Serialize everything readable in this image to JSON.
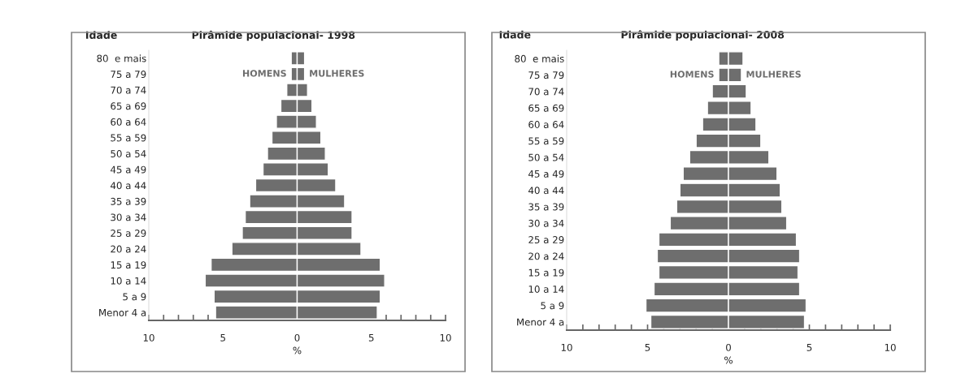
{
  "chart_data": [
    {
      "type": "bar",
      "orientation": "horizontal",
      "title": "Pirâmide populacional- 1998",
      "ylabel": "Idade",
      "xlabel": "%",
      "categories": [
        "80  e mais",
        "75 a 79",
        "70 a 74",
        "65 a 69",
        "60 a 64",
        "55 a 59",
        "50 a 54",
        "45 a 49",
        "40 a 44",
        "35 a 39",
        "30 a 34",
        "25 a 29",
        "20 a 24",
        "15 a 19",
        "10 a 14",
        "5 a 9",
        "Menor 4 a"
      ],
      "series": [
        {
          "name": "HOMENS",
          "color": "#6e6e6e",
          "values": [
            -0.4,
            -0.4,
            -0.7,
            -1.1,
            -1.4,
            -1.7,
            -2.0,
            -2.3,
            -2.8,
            -3.2,
            -3.5,
            -3.7,
            -4.4,
            -5.8,
            -6.2,
            -5.6,
            -5.5
          ]
        },
        {
          "name": "MULHERES",
          "color": "#6e6e6e",
          "values": [
            0.5,
            0.5,
            0.7,
            1.0,
            1.3,
            1.6,
            1.9,
            2.1,
            2.6,
            3.2,
            3.7,
            3.7,
            4.3,
            5.6,
            5.9,
            5.6,
            5.4
          ]
        }
      ],
      "xlim": [
        -10,
        10
      ],
      "xticks": [
        {
          "value": -10,
          "label": "10"
        },
        {
          "value": -9,
          "label": null
        },
        {
          "value": -8,
          "label": null
        },
        {
          "value": -7,
          "label": null
        },
        {
          "value": -6,
          "label": null
        },
        {
          "value": -5,
          "label": "5"
        },
        {
          "value": -4,
          "label": null
        },
        {
          "value": -3,
          "label": null
        },
        {
          "value": -2,
          "label": null
        },
        {
          "value": -1,
          "label": null
        },
        0,
        {
          "value": 1,
          "label": null
        },
        {
          "value": 2,
          "label": null
        },
        {
          "value": 3,
          "label": null
        },
        {
          "value": 4,
          "label": null
        },
        5,
        {
          "value": 6,
          "label": null
        },
        {
          "value": 7,
          "label": null
        },
        {
          "value": 8,
          "label": null
        },
        {
          "value": 9,
          "label": null
        },
        10
      ],
      "grid": false,
      "legend": false,
      "stacked": true
    },
    {
      "type": "bar",
      "orientation": "horizontal",
      "title": "Pirâmide populacional- 2008",
      "ylabel": "Idade",
      "xlabel": "%",
      "categories": [
        "80  e mais",
        "75 a 79",
        "70 a 74",
        "65 a 69",
        "60 a 64",
        "55 a 59",
        "50 a 54",
        "45 a 49",
        "40 a 44",
        "35 a 39",
        "30 a 34",
        "25 a 29",
        "20 a 24",
        "15 a 19",
        "10 a 14",
        "5 a 9",
        "Menor 4 a"
      ],
      "series": [
        {
          "name": "HOMENS",
          "color": "#6e6e6e",
          "values": [
            -0.6,
            -0.6,
            -1.0,
            -1.3,
            -1.6,
            -2.0,
            -2.4,
            -2.8,
            -3.0,
            -3.2,
            -3.6,
            -4.3,
            -4.4,
            -4.3,
            -4.6,
            -5.1,
            -4.8
          ]
        },
        {
          "name": "MULHERES",
          "color": "#6e6e6e",
          "values": [
            0.9,
            0.8,
            1.1,
            1.4,
            1.7,
            2.0,
            2.5,
            3.0,
            3.2,
            3.3,
            3.6,
            4.2,
            4.4,
            4.3,
            4.4,
            4.8,
            4.7
          ]
        }
      ],
      "xlim": [
        -10,
        10
      ],
      "xticks": [
        {
          "value": -10,
          "label": "10"
        },
        {
          "value": -9,
          "label": null
        },
        {
          "value": -8,
          "label": null
        },
        {
          "value": -7,
          "label": null
        },
        {
          "value": -6,
          "label": null
        },
        {
          "value": -5,
          "label": "5"
        },
        {
          "value": -4,
          "label": null
        },
        {
          "value": -3,
          "label": null
        },
        {
          "value": -2,
          "label": null
        },
        {
          "value": -1,
          "label": null
        },
        0,
        {
          "value": 1,
          "label": null
        },
        {
          "value": 2,
          "label": null
        },
        {
          "value": 3,
          "label": null
        },
        {
          "value": 4,
          "label": null
        },
        5,
        {
          "value": 6,
          "label": null
        },
        {
          "value": 7,
          "label": null
        },
        {
          "value": 8,
          "label": null
        },
        {
          "value": 9,
          "label": null
        },
        10
      ],
      "grid": false,
      "legend": false,
      "stacked": true
    }
  ]
}
